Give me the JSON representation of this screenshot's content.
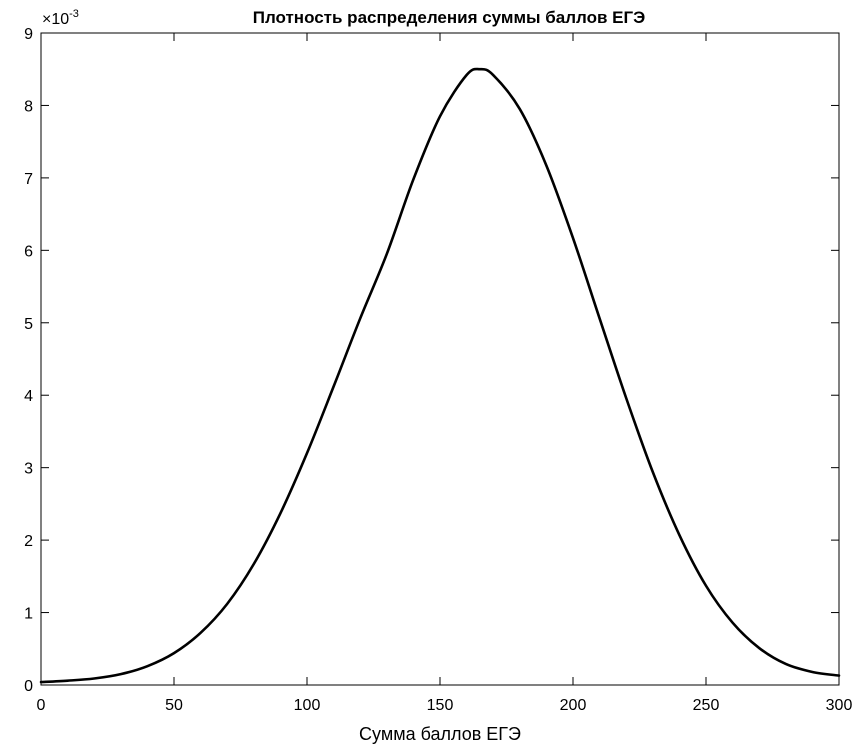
{
  "chart_data": {
    "type": "line",
    "title": "Плотность распределения суммы баллов ЕГЭ",
    "xlabel": "Сумма баллов ЕГЭ",
    "ylabel": "",
    "y_exponent_base": "×10",
    "y_exponent_power": "-3",
    "xlim": [
      0,
      300
    ],
    "ylim": [
      0,
      9
    ],
    "x_ticks": [
      0,
      50,
      100,
      150,
      200,
      250,
      300
    ],
    "y_ticks": [
      0,
      1,
      2,
      3,
      4,
      5,
      6,
      7,
      8,
      9
    ],
    "grid": false,
    "line_color": "#000000",
    "series": [
      {
        "x": [
          0,
          10,
          20,
          30,
          40,
          50,
          60,
          70,
          80,
          90,
          100,
          110,
          120,
          130,
          140,
          150,
          160,
          165,
          170,
          180,
          190,
          200,
          210,
          220,
          230,
          240,
          250,
          260,
          270,
          280,
          290,
          300
        ],
        "y": [
          0.04,
          0.06,
          0.09,
          0.15,
          0.26,
          0.44,
          0.72,
          1.12,
          1.67,
          2.37,
          3.2,
          4.12,
          5.06,
          5.95,
          6.98,
          7.85,
          8.42,
          8.5,
          8.42,
          7.95,
          7.17,
          6.17,
          5.06,
          3.96,
          2.94,
          2.07,
          1.37,
          0.86,
          0.51,
          0.29,
          0.18,
          0.13
        ]
      }
    ]
  }
}
